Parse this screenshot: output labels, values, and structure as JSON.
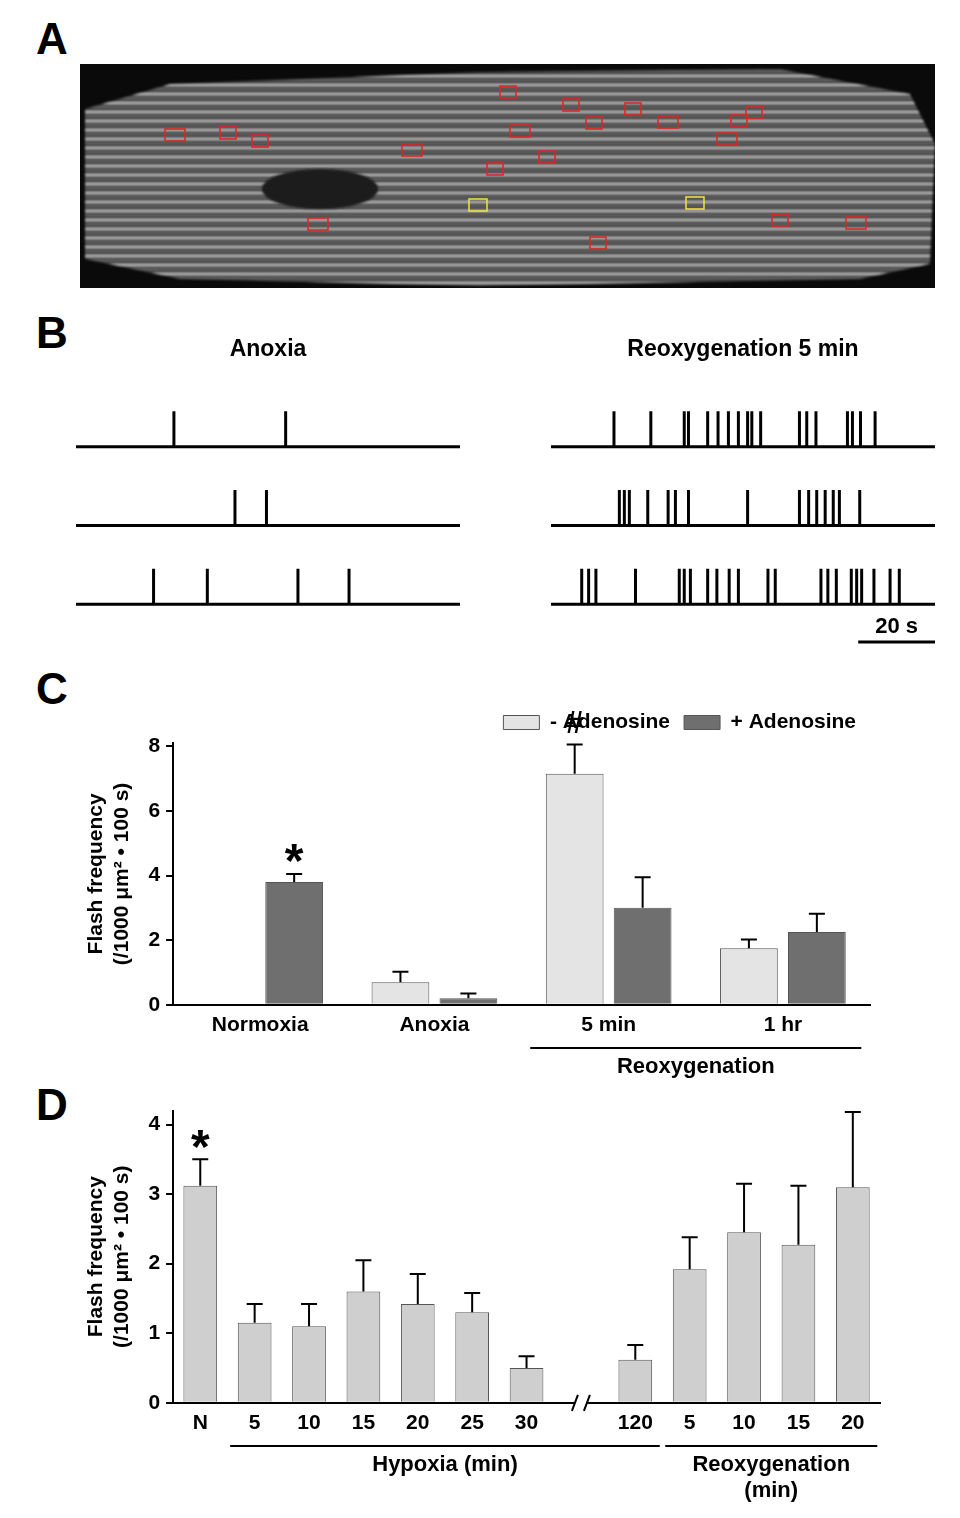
{
  "panel_labels": [
    "A",
    "B",
    "C",
    "D"
  ],
  "chart_data": [
    {
      "type": "raster",
      "title": "Anoxia",
      "xlim": [
        0,
        100
      ],
      "tick_labels": false,
      "traces": [
        [
          25.5,
          54.6
        ],
        [
          41.4,
          49.6
        ],
        [
          20.2,
          34.2,
          57.8,
          71.1
        ]
      ]
    },
    {
      "type": "raster",
      "title": "Reoxygenation 5 min",
      "xlim": [
        0,
        100
      ],
      "tick_labels": false,
      "scale_bar": {
        "value": 20,
        "label": "20 s"
      },
      "traces": [
        [
          16.4,
          26.0,
          34.7,
          35.8,
          40.8,
          43.5,
          46.2,
          48.8,
          51.2,
          52.3,
          54.6,
          64.7,
          66.6,
          69.0,
          77.2,
          78.5,
          80.6,
          84.4
        ],
        [
          17.8,
          19.1,
          20.4,
          25.2,
          30.5,
          32.4,
          35.8,
          51.2,
          64.7,
          67.1,
          69.2,
          71.4,
          73.5,
          75.1,
          80.4
        ],
        [
          8.0,
          9.8,
          11.7,
          22.0,
          33.4,
          34.7,
          36.3,
          40.8,
          43.2,
          46.4,
          48.8,
          56.5,
          58.4,
          70.3,
          72.1,
          74.3,
          78.2,
          79.6,
          80.9,
          84.1,
          88.3,
          90.7
        ]
      ]
    },
    {
      "type": "bar",
      "categories": [
        "Normoxia",
        "Anoxia",
        "5 min",
        "1 hr"
      ],
      "y_label": [
        "Flash frequency",
        "(/1000 μm² • 100 s)"
      ],
      "ylim": [
        0,
        8.1
      ],
      "yticks": [
        0,
        2,
        4,
        6,
        8
      ],
      "grid": false,
      "legend": "top right",
      "series": [
        {
          "name": "- Adenosine",
          "color": "#e4e4e4",
          "values": [
            null,
            0.7,
            7.15,
            1.75
          ],
          "errors": [
            null,
            0.32,
            0.9,
            0.27
          ]
        },
        {
          "name": "+ Adenosine",
          "color": "#6f6f6f",
          "values": [
            3.8,
            0.2,
            3.0,
            2.25
          ],
          "errors": [
            0.25,
            0.15,
            0.95,
            0.57
          ]
        }
      ],
      "annotations": [
        {
          "text": "*",
          "category": "Normoxia",
          "series": "+ Adenosine"
        },
        {
          "text": "#",
          "category": "5 min",
          "series": "- Adenosine"
        }
      ],
      "group_labels": [
        {
          "text": "Reoxygenation",
          "from": "5 min",
          "to": "1 hr"
        }
      ]
    },
    {
      "type": "bar",
      "categories": [
        "N",
        "5",
        "10",
        "15",
        "20",
        "25",
        "30",
        null,
        "120",
        "5",
        "10",
        "15",
        "20"
      ],
      "values": [
        3.12,
        1.15,
        1.1,
        1.6,
        1.42,
        1.3,
        0.5,
        null,
        0.62,
        1.92,
        2.45,
        2.27,
        3.1
      ],
      "errors": [
        0.38,
        0.27,
        0.32,
        0.45,
        0.43,
        0.28,
        0.17,
        null,
        0.21,
        0.46,
        0.7,
        0.85,
        1.08
      ],
      "color": "#cfcfcf",
      "y_label": [
        "Flash frequency",
        "(/1000 μm² • 100 s)"
      ],
      "ylim": [
        0,
        4.2
      ],
      "yticks": [
        0,
        1,
        2,
        3,
        4
      ],
      "grid": false,
      "annotations": [
        {
          "text": "*",
          "index": 0
        }
      ],
      "group_labels": [
        {
          "text": "Hypoxia (min)",
          "from": 1,
          "to": 8
        },
        {
          "text": [
            "Reoxygenation",
            "(min)"
          ],
          "from": 9,
          "to": 12
        }
      ]
    }
  ]
}
